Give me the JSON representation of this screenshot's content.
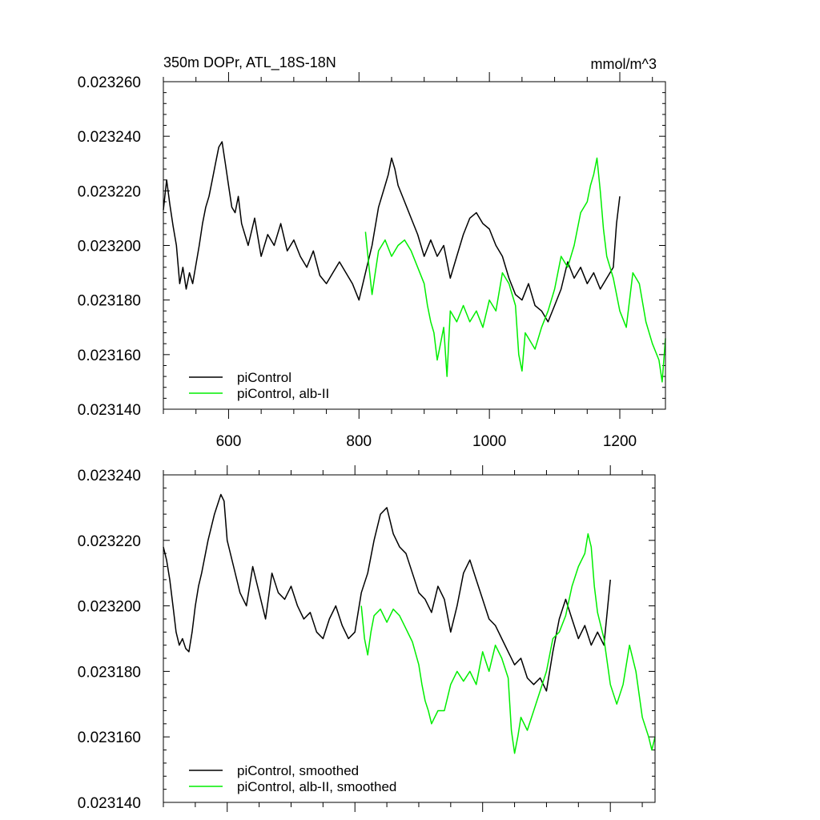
{
  "colors": {
    "control": "#000000",
    "alb": "#00ee00"
  },
  "chart_data": [
    {
      "type": "line",
      "title": "350m DOPr, ATL_18S-18N",
      "units": "mmol/m^3",
      "xlim": [
        500,
        1270
      ],
      "ylim": [
        0.02314,
        0.02326
      ],
      "x_ticks": [
        "600",
        "800",
        "1000",
        "1200"
      ],
      "y_ticks": [
        "0.023140",
        "0.023160",
        "0.023180",
        "0.023200",
        "0.023220",
        "0.023240",
        "0.023260"
      ],
      "legend": [
        "piControl",
        "piControl, alb-II"
      ],
      "legend_position": "bottom-left",
      "series": [
        {
          "name": "piControl",
          "color": "#000000",
          "x": [
            500,
            505,
            510,
            515,
            520,
            525,
            530,
            535,
            540,
            545,
            550,
            555,
            560,
            565,
            570,
            575,
            580,
            585,
            590,
            595,
            600,
            605,
            610,
            615,
            620,
            630,
            640,
            650,
            660,
            670,
            680,
            690,
            700,
            710,
            720,
            730,
            740,
            750,
            760,
            770,
            780,
            790,
            800,
            810,
            820,
            830,
            840,
            845,
            850,
            855,
            860,
            870,
            880,
            890,
            900,
            910,
            920,
            930,
            940,
            950,
            960,
            970,
            980,
            990,
            1000,
            1010,
            1020,
            1030,
            1040,
            1050,
            1060,
            1070,
            1080,
            1090,
            1100,
            1110,
            1120,
            1130,
            1140,
            1150,
            1160,
            1170,
            1180,
            1190,
            1195,
            1200
          ],
          "y": [
            0.023213,
            0.023224,
            0.023215,
            0.023207,
            0.0232,
            0.023186,
            0.023192,
            0.023184,
            0.02319,
            0.023186,
            0.023193,
            0.0232,
            0.023208,
            0.023214,
            0.023218,
            0.023224,
            0.02323,
            0.023236,
            0.023238,
            0.02323,
            0.023222,
            0.023214,
            0.023212,
            0.023218,
            0.023208,
            0.0232,
            0.02321,
            0.023196,
            0.023204,
            0.0232,
            0.023208,
            0.023198,
            0.023202,
            0.023196,
            0.023192,
            0.023198,
            0.023189,
            0.023186,
            0.02319,
            0.023194,
            0.02319,
            0.023186,
            0.02318,
            0.02319,
            0.0232,
            0.023214,
            0.023222,
            0.023226,
            0.023232,
            0.023228,
            0.023222,
            0.023216,
            0.02321,
            0.023204,
            0.023196,
            0.023202,
            0.023196,
            0.0232,
            0.023188,
            0.023196,
            0.023204,
            0.02321,
            0.023212,
            0.023208,
            0.023206,
            0.0232,
            0.023196,
            0.023188,
            0.023182,
            0.02318,
            0.023186,
            0.023178,
            0.023176,
            0.023172,
            0.023178,
            0.023184,
            0.023194,
            0.023188,
            0.023192,
            0.023186,
            0.02319,
            0.023184,
            0.023188,
            0.023192,
            0.023208,
            0.023218
          ]
        },
        {
          "name": "piControl, alb-II",
          "color": "#00ee00",
          "x": [
            810,
            815,
            820,
            825,
            830,
            840,
            850,
            860,
            870,
            880,
            890,
            900,
            905,
            910,
            915,
            920,
            925,
            930,
            935,
            940,
            950,
            960,
            970,
            980,
            990,
            1000,
            1010,
            1020,
            1030,
            1040,
            1045,
            1050,
            1055,
            1060,
            1070,
            1080,
            1090,
            1100,
            1110,
            1120,
            1130,
            1140,
            1150,
            1155,
            1160,
            1165,
            1170,
            1175,
            1180,
            1190,
            1200,
            1210,
            1220,
            1230,
            1240,
            1250,
            1260,
            1265,
            1270
          ],
          "y": [
            0.023205,
            0.023193,
            0.023182,
            0.02319,
            0.023198,
            0.023202,
            0.023196,
            0.0232,
            0.023202,
            0.023198,
            0.023192,
            0.023186,
            0.023178,
            0.023172,
            0.023168,
            0.023158,
            0.023164,
            0.02317,
            0.023152,
            0.023176,
            0.023172,
            0.023178,
            0.023172,
            0.023176,
            0.02317,
            0.02318,
            0.023176,
            0.02319,
            0.023186,
            0.023178,
            0.02316,
            0.023154,
            0.023168,
            0.023166,
            0.023162,
            0.02317,
            0.023176,
            0.023184,
            0.023196,
            0.023192,
            0.0232,
            0.023212,
            0.023216,
            0.023222,
            0.023226,
            0.023232,
            0.02322,
            0.023206,
            0.023196,
            0.023188,
            0.023176,
            0.02317,
            0.02319,
            0.023186,
            0.023172,
            0.023164,
            0.023158,
            0.02315,
            0.023166
          ]
        }
      ]
    },
    {
      "type": "line",
      "xlim": [
        500,
        1270
      ],
      "ylim": [
        0.02314,
        0.02324
      ],
      "y_ticks": [
        "0.023140",
        "0.023160",
        "0.023180",
        "0.023200",
        "0.023220",
        "0.023240"
      ],
      "legend": [
        "piControl, smoothed",
        "piControl, alb-II, smoothed"
      ],
      "legend_position": "bottom-left",
      "series": [
        {
          "name": "piControl, smoothed",
          "color": "#000000",
          "x": [
            500,
            505,
            510,
            515,
            520,
            525,
            530,
            535,
            540,
            545,
            550,
            555,
            560,
            570,
            580,
            590,
            595,
            600,
            610,
            620,
            630,
            640,
            650,
            660,
            670,
            680,
            690,
            700,
            710,
            720,
            730,
            740,
            750,
            760,
            770,
            780,
            790,
            800,
            810,
            820,
            830,
            840,
            850,
            860,
            870,
            880,
            890,
            900,
            910,
            920,
            930,
            940,
            950,
            960,
            970,
            980,
            990,
            1000,
            1010,
            1020,
            1030,
            1040,
            1050,
            1060,
            1070,
            1080,
            1090,
            1100,
            1110,
            1120,
            1130,
            1140,
            1150,
            1160,
            1170,
            1180,
            1190,
            1200
          ],
          "y": [
            0.023218,
            0.023214,
            0.023208,
            0.0232,
            0.023192,
            0.023188,
            0.02319,
            0.023187,
            0.023186,
            0.023192,
            0.0232,
            0.023206,
            0.02321,
            0.02322,
            0.023228,
            0.023234,
            0.023232,
            0.02322,
            0.023212,
            0.023204,
            0.0232,
            0.023212,
            0.023204,
            0.023196,
            0.02321,
            0.023204,
            0.023202,
            0.023206,
            0.0232,
            0.023196,
            0.023198,
            0.023192,
            0.02319,
            0.023196,
            0.0232,
            0.023194,
            0.02319,
            0.023192,
            0.023204,
            0.02321,
            0.02322,
            0.023228,
            0.02323,
            0.023222,
            0.023218,
            0.023216,
            0.02321,
            0.023204,
            0.023202,
            0.023198,
            0.023206,
            0.023202,
            0.023192,
            0.0232,
            0.02321,
            0.023214,
            0.023208,
            0.023202,
            0.023196,
            0.023194,
            0.02319,
            0.023186,
            0.023182,
            0.023184,
            0.023178,
            0.023176,
            0.023178,
            0.023174,
            0.023186,
            0.023196,
            0.023202,
            0.023196,
            0.02319,
            0.023194,
            0.023188,
            0.023192,
            0.023188,
            0.023208
          ]
        },
        {
          "name": "piControl, alb-II, smoothed",
          "color": "#00ee00",
          "x": [
            810,
            815,
            820,
            825,
            830,
            840,
            850,
            860,
            870,
            880,
            890,
            900,
            905,
            910,
            915,
            920,
            930,
            940,
            950,
            960,
            970,
            980,
            990,
            1000,
            1010,
            1020,
            1030,
            1040,
            1045,
            1050,
            1055,
            1060,
            1070,
            1080,
            1090,
            1100,
            1110,
            1120,
            1130,
            1140,
            1150,
            1160,
            1165,
            1170,
            1175,
            1180,
            1190,
            1200,
            1210,
            1220,
            1230,
            1240,
            1250,
            1260,
            1265,
            1270
          ],
          "y": [
            0.0232,
            0.02319,
            0.023185,
            0.023192,
            0.023197,
            0.023199,
            0.023195,
            0.023199,
            0.023197,
            0.023193,
            0.023189,
            0.023182,
            0.023176,
            0.023171,
            0.023168,
            0.023164,
            0.023168,
            0.023168,
            0.023176,
            0.02318,
            0.023177,
            0.02318,
            0.023176,
            0.023186,
            0.02318,
            0.023188,
            0.023184,
            0.023178,
            0.023162,
            0.023155,
            0.02316,
            0.023166,
            0.023162,
            0.023168,
            0.023174,
            0.02318,
            0.02319,
            0.023192,
            0.023197,
            0.023206,
            0.023212,
            0.023216,
            0.023222,
            0.023218,
            0.023206,
            0.023198,
            0.02319,
            0.023176,
            0.02317,
            0.023176,
            0.023188,
            0.02318,
            0.023166,
            0.02316,
            0.023156,
            0.02316
          ]
        }
      ]
    }
  ]
}
